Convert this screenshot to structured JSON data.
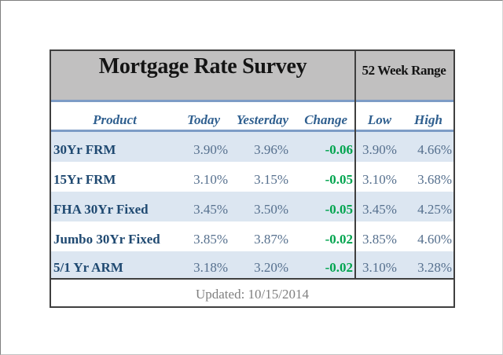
{
  "chart_data": {
    "type": "table",
    "title": "Mortgage Rate Survey",
    "range_title": "52 Week Range",
    "columns": [
      "Product",
      "Today",
      "Yesterday",
      "Change",
      "Low",
      "High"
    ],
    "rows": [
      {
        "product": "30Yr FRM",
        "today": "3.90%",
        "yesterday": "3.96%",
        "change": "-0.06",
        "low": "3.90%",
        "high": "4.66%"
      },
      {
        "product": "15Yr FRM",
        "today": "3.10%",
        "yesterday": "3.15%",
        "change": "-0.05",
        "low": "3.10%",
        "high": "3.68%"
      },
      {
        "product": "FHA 30Yr Fixed",
        "today": "3.45%",
        "yesterday": "3.50%",
        "change": "-0.05",
        "low": "3.45%",
        "high": "4.25%"
      },
      {
        "product": "Jumbo 30Yr Fixed",
        "today": "3.85%",
        "yesterday": "3.87%",
        "change": "-0.02",
        "low": "3.85%",
        "high": "4.60%"
      },
      {
        "product": "5/1 Yr ARM",
        "today": "3.18%",
        "yesterday": "3.20%",
        "change": "-0.02",
        "low": "3.10%",
        "high": "3.28%"
      }
    ],
    "updated": "Updated: 10/15/2014",
    "layout": {
      "legend": "none",
      "grid": "banded-rows",
      "band_start": "row1"
    }
  },
  "colors": {
    "header_bg": "#c1c0c0",
    "band_blue": "#dce6f1",
    "rule_blue": "#7d9cc6",
    "border_dark": "#3f3f3f",
    "product_navy": "#1f4971",
    "number_slate": "#56708e",
    "change_green": "#00a44e",
    "colhead_blue": "#2f5f8f",
    "footer_gray": "#7f7f7f"
  }
}
